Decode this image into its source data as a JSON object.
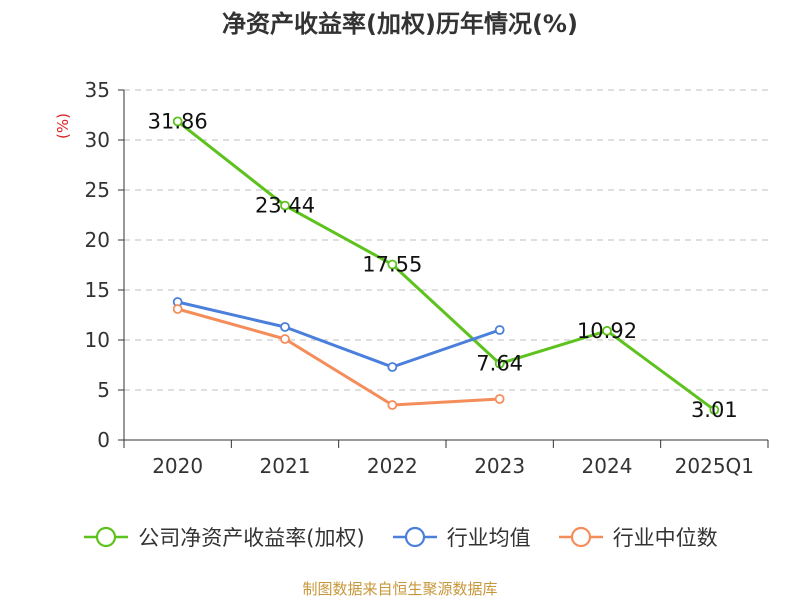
{
  "chart_data": {
    "type": "line",
    "title": "净资产收益率(加权)历年情况(%)",
    "ylabel": "(%)",
    "xlabel": "",
    "categories": [
      "2020",
      "2021",
      "2022",
      "2023",
      "2024",
      "2025Q1"
    ],
    "ylim": [
      0,
      35
    ],
    "yticks": [
      0,
      5,
      10,
      15,
      20,
      25,
      30,
      35
    ],
    "grid": "horizontal-dashed",
    "legend_position": "bottom",
    "series": [
      {
        "name": "公司净资产收益率(加权)",
        "color": "#5dc21e",
        "values": [
          31.86,
          23.44,
          17.55,
          7.64,
          10.92,
          3.01
        ],
        "labels": [
          "31.86",
          "23.44",
          "17.55",
          "7.64",
          "10.92",
          "3.01"
        ]
      },
      {
        "name": "行业均值",
        "color": "#4a7fdb",
        "values": [
          13.8,
          11.3,
          7.3,
          11.0,
          null,
          null
        ]
      },
      {
        "name": "行业中位数",
        "color": "#f58d5a",
        "values": [
          13.1,
          10.1,
          3.5,
          4.1,
          null,
          null
        ]
      }
    ]
  },
  "source": "制图数据来自恒生聚源数据库"
}
